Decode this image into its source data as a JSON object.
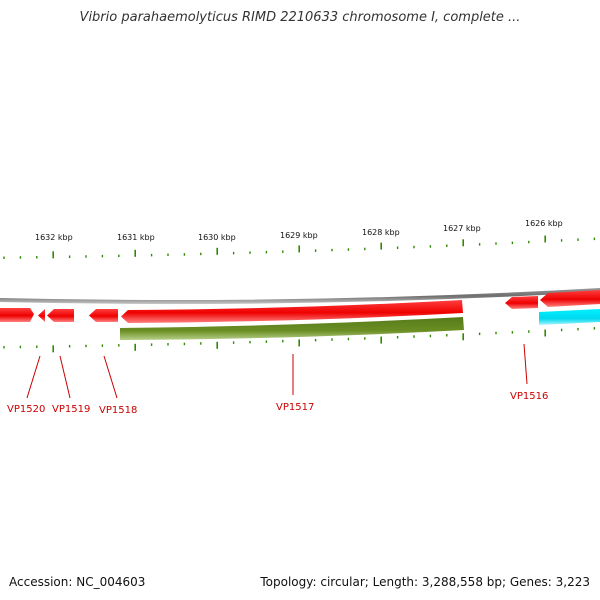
{
  "title": "Vibrio parahaemolyticus RIMD 2210633 chromosome I, complete ...",
  "footer": {
    "accession": "Accession: NC_004603",
    "summary": "Topology: circular; Length: 3,288,558 bp; Genes: 3,223"
  },
  "scale_labels": [
    "1632 kbp",
    "1631 kbp",
    "1630 kbp",
    "1629 kbp",
    "1628 kbp",
    "1627 kbp",
    "1626 kbp"
  ],
  "gene_labels": [
    "VP1520",
    "VP1519",
    "VP1518",
    "VP1517",
    "VP1516"
  ],
  "colors": {
    "gene_forward": "#ff0000",
    "gene_feature": "#6b8e23",
    "gene_other": "#00e5ff",
    "backbone": "#7a7a7a",
    "ticks": "#2e8b00",
    "label": "#cc0000"
  }
}
